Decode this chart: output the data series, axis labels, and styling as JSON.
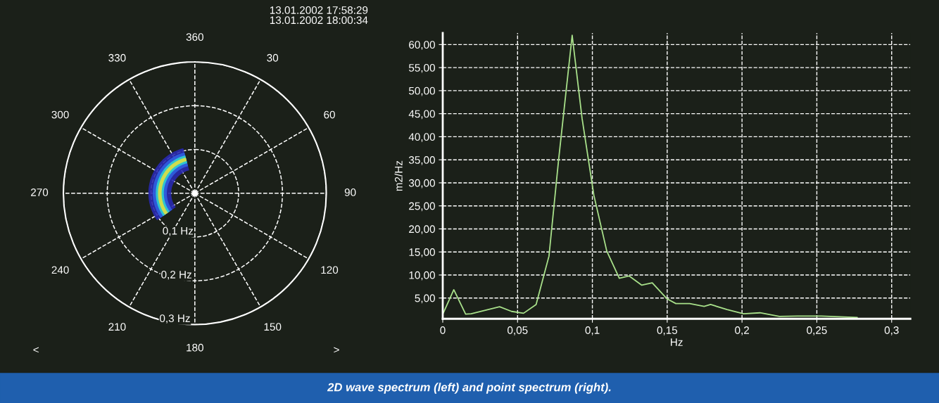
{
  "chart_data": [
    {
      "type": "other",
      "categories": [
        "360",
        "30",
        "60",
        "90",
        "120",
        "150",
        "180",
        "210",
        "240",
        "270",
        "300",
        "330"
      ],
      "annotations": [
        "13.01.2002 17:58:29\n13.01.2002 18:00:34",
        "<",
        ">",
        "0,1 Hz",
        "0,2 Hz",
        "0,3 Hz"
      ]
    },
    {
      "type": "line",
      "xlabel": "Hz",
      "ylabel": "m2/Hz",
      "x": [
        0.0003,
        0.0074,
        0.0153,
        0.019,
        0.038,
        0.046,
        0.054,
        0.0624,
        0.071,
        0.0774,
        0.0865,
        0.0931,
        0.101,
        0.1096,
        0.118,
        0.1245,
        0.133,
        0.14,
        0.15,
        0.1558,
        0.165,
        0.1747,
        0.179,
        0.19,
        0.201,
        0.212,
        0.225,
        0.237,
        0.253,
        0.277
      ],
      "series": [
        {
          "color": "#a8e08a",
          "values": [
            1.7,
            6.8,
            1.5,
            1.6,
            3.1,
            2.1,
            1.7,
            3.6,
            14.1,
            34.9,
            62.0,
            44.0,
            27.3,
            15.2,
            9.3,
            9.8,
            7.8,
            8.3,
            4.8,
            3.8,
            3.8,
            3.2,
            3.6,
            2.5,
            1.6,
            1.8,
            1.0,
            1.1,
            1.1,
            0.8
          ]
        }
      ],
      "xlim": [
        0,
        0.3125
      ],
      "ylim": [
        0.5,
        62.5
      ],
      "xticks": [
        0,
        {
          "value": 0.05,
          "label": "0,05"
        },
        {
          "value": 0.1,
          "label": "0,1"
        },
        {
          "value": 0.15,
          "label": "0,15"
        },
        {
          "value": 0.2,
          "label": "0,2"
        },
        {
          "value": 0.25,
          "label": "0,25"
        },
        {
          "value": 0.3,
          "label": "0,3"
        }
      ],
      "yticks": [
        {
          "value": 5,
          "label": "5,00"
        },
        {
          "value": 10,
          "label": "10,00"
        },
        {
          "value": 15,
          "label": "15,00"
        },
        {
          "value": 20,
          "label": "20,00"
        },
        {
          "value": 25,
          "label": "25,00"
        },
        {
          "value": 30,
          "label": "30,00"
        },
        {
          "value": 35,
          "label": "35,00"
        },
        {
          "value": 40,
          "label": "40,00"
        },
        {
          "value": 45,
          "label": "45,00"
        },
        {
          "value": 50,
          "label": "50,00"
        },
        {
          "value": 55,
          "label": "55,00"
        },
        {
          "value": 60,
          "label": "60,00"
        }
      ],
      "grid": true,
      "line_style": "solid",
      "marker": "none",
      "annotations": [
        "2D wave spectrum (left) and point spectrum (right)."
      ]
    }
  ]
}
